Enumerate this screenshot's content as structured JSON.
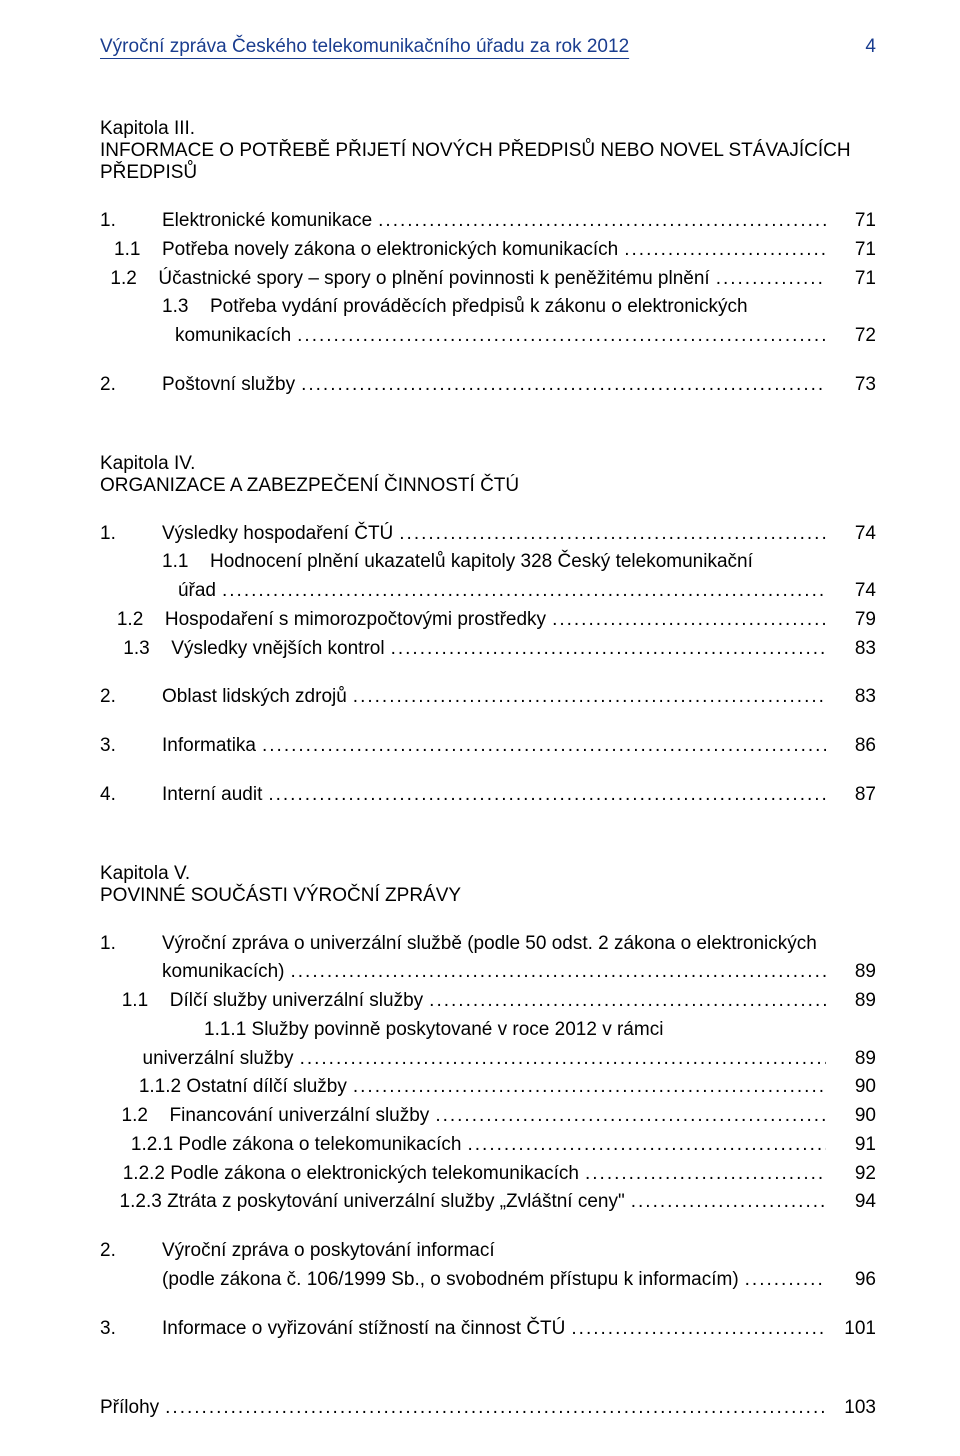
{
  "header": {
    "title": "Výroční zpráva Českého telekomunikačního úřadu za rok 2012",
    "page": "4",
    "color": "#1a3d8f"
  },
  "chapters": [
    {
      "heading_lines": [
        "Kapitola III.",
        "INFORMACE O POTŘEBĚ PŘIJETÍ NOVÝCH PŘEDPISŮ NEBO NOVEL STÁVAJÍCÍCH",
        "PŘEDPISŮ"
      ],
      "items": [
        {
          "num": "1.",
          "label": "Elektronické komunikace",
          "page": "71",
          "indent": 0
        },
        {
          "num": "1.1",
          "label": "Potřeba novely zákona o elektronických komunikacích",
          "page": "71",
          "indent": 1
        },
        {
          "num": "1.2",
          "label": "Účastnické spory – spory o plnění povinnosti k peněžitému plnění",
          "page": "71",
          "indent": 1
        },
        {
          "num": "1.3",
          "label": "Potřeba vydání prováděcích předpisů k zákonu o elektronických",
          "page": "",
          "indent": 1,
          "noleaders": true
        },
        {
          "num": "",
          "label": "komunikacích",
          "page": "72",
          "indent": 1,
          "cont": true
        },
        {
          "num": "",
          "label": "",
          "page": "",
          "indent": 0,
          "spacer": true
        },
        {
          "num": "2.",
          "label": "Poštovní služby",
          "page": "73",
          "indent": 0
        }
      ]
    },
    {
      "heading_lines": [
        "Kapitola IV.",
        "ORGANIZACE A ZABEZPEČENÍ ČINNOSTÍ ČTÚ"
      ],
      "items": [
        {
          "num": "1.",
          "label": "Výsledky hospodaření ČTÚ",
          "page": "74",
          "indent": 0
        },
        {
          "num": "1.1",
          "label": "Hodnocení plnění ukazatelů kapitoly 328 Český telekomunikační",
          "page": "",
          "indent": 1,
          "noleaders": true
        },
        {
          "num": "",
          "label": "úřad",
          "page": "74",
          "indent": 1,
          "cont": true
        },
        {
          "num": "1.2",
          "label": "Hospodaření s mimorozpočtovými prostředky",
          "page": "79",
          "indent": 1
        },
        {
          "num": "1.3",
          "label": "Výsledky vnějších kontrol",
          "page": "83",
          "indent": 1
        },
        {
          "num": "",
          "label": "",
          "page": "",
          "indent": 0,
          "spacer": true
        },
        {
          "num": "2.",
          "label": "Oblast lidských zdrojů",
          "page": "83",
          "indent": 0
        },
        {
          "num": "",
          "label": "",
          "page": "",
          "indent": 0,
          "spacer": true
        },
        {
          "num": "3.",
          "label": "Informatika",
          "page": "86",
          "indent": 0
        },
        {
          "num": "",
          "label": "",
          "page": "",
          "indent": 0,
          "spacer": true
        },
        {
          "num": "4.",
          "label": "Interní audit",
          "page": "87",
          "indent": 0
        }
      ]
    },
    {
      "heading_lines": [
        "Kapitola V.",
        "POVINNÉ SOUČÁSTI VÝROČNÍ ZPRÁVY"
      ],
      "items": [
        {
          "num": "1.",
          "label": "Výroční zpráva o univerzální službě (podle 50 odst. 2 zákona o elektronických",
          "page": "",
          "indent": 0,
          "noleaders": true
        },
        {
          "num": "",
          "label": "komunikacích)",
          "page": "89",
          "indent": 0,
          "cont": true,
          "contpad": 56
        },
        {
          "num": "1.1",
          "label": "Dílčí služby univerzální služby",
          "page": "89",
          "indent": 1
        },
        {
          "num": "",
          "label": "1.1.1 Služby povinně poskytované v roce 2012 v rámci",
          "page": "",
          "indent": 2,
          "noleaders": true,
          "raw": true
        },
        {
          "num": "",
          "label": "univerzální služby",
          "page": "89",
          "indent": 2,
          "cont": true
        },
        {
          "num": "",
          "label": "1.1.2 Ostatní dílčí služby",
          "page": "90",
          "indent": 2,
          "raw": true
        },
        {
          "num": "1.2",
          "label": "Financování univerzální služby",
          "page": "90",
          "indent": 1
        },
        {
          "num": "",
          "label": "1.2.1 Podle zákona o telekomunikacích",
          "page": "91",
          "indent": 2,
          "raw": true
        },
        {
          "num": "",
          "label": "1.2.2 Podle zákona o elektronických telekomunikacích",
          "page": "92",
          "indent": 2,
          "raw": true
        },
        {
          "num": "",
          "label": "1.2.3 Ztráta z poskytování univerzální služby „Zvláštní ceny\"",
          "page": "94",
          "indent": 2,
          "raw": true
        },
        {
          "num": "",
          "label": "",
          "page": "",
          "indent": 0,
          "spacer": true
        },
        {
          "num": "2.",
          "label": "Výroční zpráva o poskytování informací",
          "page": "",
          "indent": 0,
          "noleaders": true
        },
        {
          "num": "",
          "label": "(podle zákona č. 106/1999 Sb., o svobodném přístupu k informacím)",
          "page": "96",
          "indent": 0,
          "cont": true,
          "contpad": 56
        },
        {
          "num": "",
          "label": "",
          "page": "",
          "indent": 0,
          "spacer": true
        },
        {
          "num": "3.",
          "label": "Informace o vyřizování stížností na činnost ČTÚ",
          "page": "101",
          "indent": 0
        }
      ]
    }
  ],
  "footer": {
    "label": "Přílohy",
    "page": "103"
  }
}
